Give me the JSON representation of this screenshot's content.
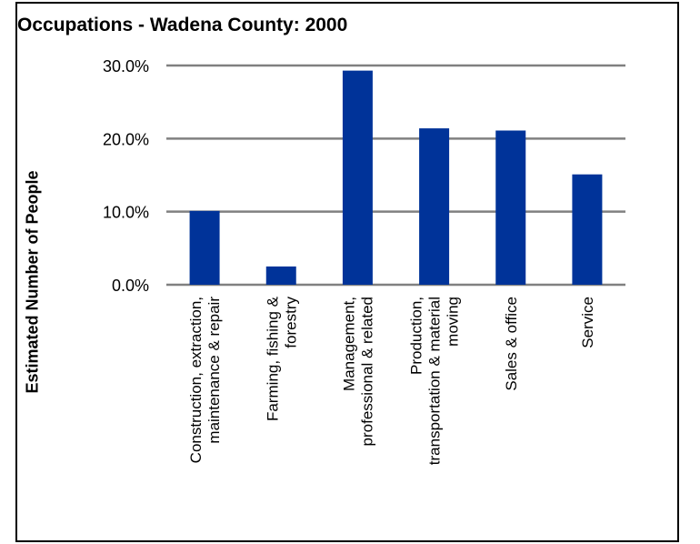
{
  "chart_data": {
    "type": "bar",
    "title": "Occupations - Wadena County: 2000",
    "xlabel": "",
    "ylabel": "Estimated Number of People",
    "categories": [
      [
        "Construction, extraction,",
        "maintenance & repair"
      ],
      [
        "Farming, fishing &",
        "forestry"
      ],
      [
        "Management,",
        "professional & related"
      ],
      [
        "Production,",
        "transportation & material",
        "moving"
      ],
      [
        "Sales & office"
      ],
      [
        "Service"
      ]
    ],
    "values": [
      10.1,
      2.5,
      29.3,
      21.4,
      21.1,
      15.1
    ],
    "ylim": [
      0,
      30
    ],
    "yticks": [
      0,
      10,
      20,
      30
    ],
    "ytick_labels": [
      "0.0%",
      "10.0%",
      "20.0%",
      "30.0%"
    ],
    "grid": true,
    "legend": "none",
    "bar_color": "#003399",
    "grid_color": "#808080"
  }
}
